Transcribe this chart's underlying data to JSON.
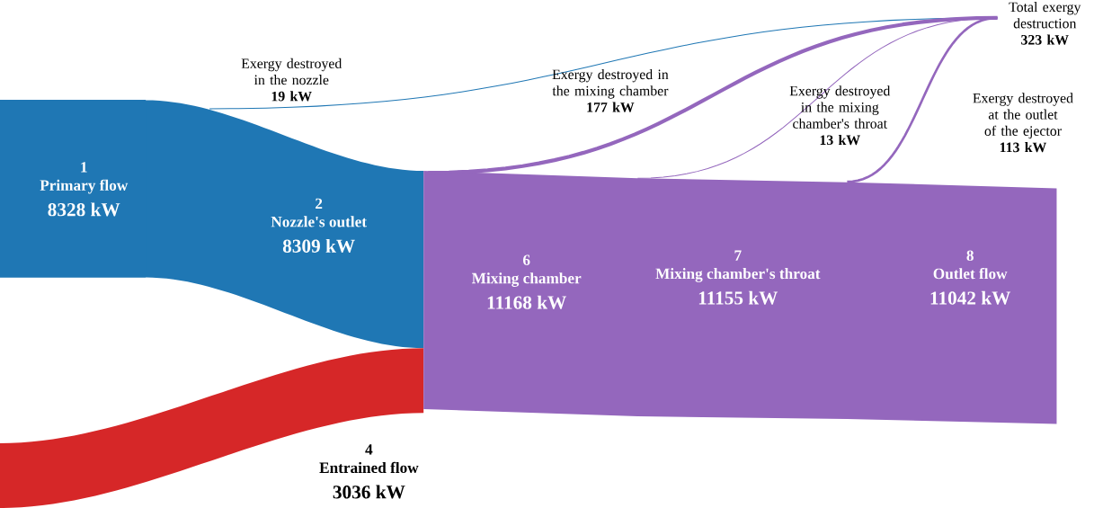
{
  "chart_data": {
    "type": "other",
    "categories": [
      "Primary flow",
      "Nozzle's outlet",
      "Entrained flow",
      "Mixing chamber",
      "Mixing chamber's throat",
      "Outlet flow",
      "Exergy destroyed in the nozzle",
      "Exergy destroyed in the mixing chamber",
      "Exergy destroyed in the mixing chamber's throat",
      "Exergy destroyed at the outlet of the ejector",
      "Total exergy destruction"
    ],
    "values": [
      8328,
      8309,
      3036,
      11168,
      11155,
      11042,
      19,
      177,
      13,
      113,
      323
    ],
    "value_labels": [
      "8328 kW",
      "8309 kW",
      "3036 kW",
      "11168 kW",
      "11155 kW",
      "11042 kW",
      "19 kW",
      "177 kW",
      "13 kW",
      "113 kW",
      "323 kW"
    ],
    "colors": [
      "#1f77b4",
      "#1f77b4",
      "#d62728",
      "#9467bd",
      "#9467bd",
      "#9467bd",
      "#1f77b4",
      "#9467bd",
      "#9467bd",
      "#9467bd",
      null
    ],
    "annotations": [
      "1",
      "2",
      "4",
      "6",
      "7",
      "8"
    ]
  }
}
